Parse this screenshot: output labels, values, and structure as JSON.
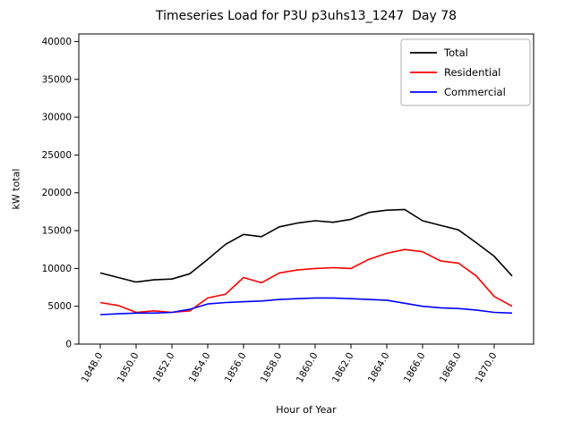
{
  "chart_data": {
    "type": "line",
    "title": "Timeseries Load for P3U p3uhs13_1247  Day 78",
    "xlabel": "Hour of Year",
    "ylabel": "kW total",
    "xlim": [
      1846.8,
      1872.2
    ],
    "ylim": [
      0,
      41000
    ],
    "grid": false,
    "legend_position": "upper right",
    "x": [
      1848,
      1849,
      1850,
      1851,
      1852,
      1853,
      1854,
      1855,
      1856,
      1857,
      1858,
      1859,
      1860,
      1861,
      1862,
      1863,
      1864,
      1865,
      1866,
      1867,
      1868,
      1869,
      1870,
      1871
    ],
    "series": [
      {
        "name": "Total",
        "color": "#000000",
        "values": [
          9400,
          8800,
          8200,
          8500,
          8600,
          9300,
          11200,
          13200,
          14500,
          14200,
          15500,
          16000,
          16300,
          16100,
          16500,
          17400,
          17700,
          17800,
          16300,
          15700,
          15100,
          13400,
          11600,
          9000
        ]
      },
      {
        "name": "Residential",
        "color": "#ff0000",
        "values": [
          5500,
          5100,
          4200,
          4400,
          4200,
          4400,
          6100,
          6600,
          8800,
          8100,
          9400,
          9800,
          10000,
          10100,
          10000,
          11200,
          12000,
          12500,
          12200,
          11000,
          10700,
          9000,
          6300,
          5000
        ]
      },
      {
        "name": "Commercial",
        "color": "#0000ff",
        "values": [
          3900,
          4000,
          4100,
          4100,
          4200,
          4600,
          5300,
          5500,
          5600,
          5700,
          5900,
          6000,
          6100,
          6100,
          6000,
          5900,
          5800,
          5400,
          5000,
          4800,
          4700,
          4500,
          4200,
          4100
        ]
      }
    ],
    "xticks": [
      1848,
      1850,
      1852,
      1854,
      1856,
      1858,
      1860,
      1862,
      1864,
      1866,
      1868,
      1870
    ],
    "xtick_labels": [
      "1848.0",
      "1850.0",
      "1852.0",
      "1854.0",
      "1856.0",
      "1858.0",
      "1860.0",
      "1862.0",
      "1864.0",
      "1866.0",
      "1868.0",
      "1870.0"
    ],
    "yticks": [
      0,
      5000,
      10000,
      15000,
      20000,
      25000,
      30000,
      35000,
      40000
    ],
    "ytick_labels": [
      "0",
      "5000",
      "10000",
      "15000",
      "20000",
      "25000",
      "30000",
      "35000",
      "40000"
    ]
  }
}
